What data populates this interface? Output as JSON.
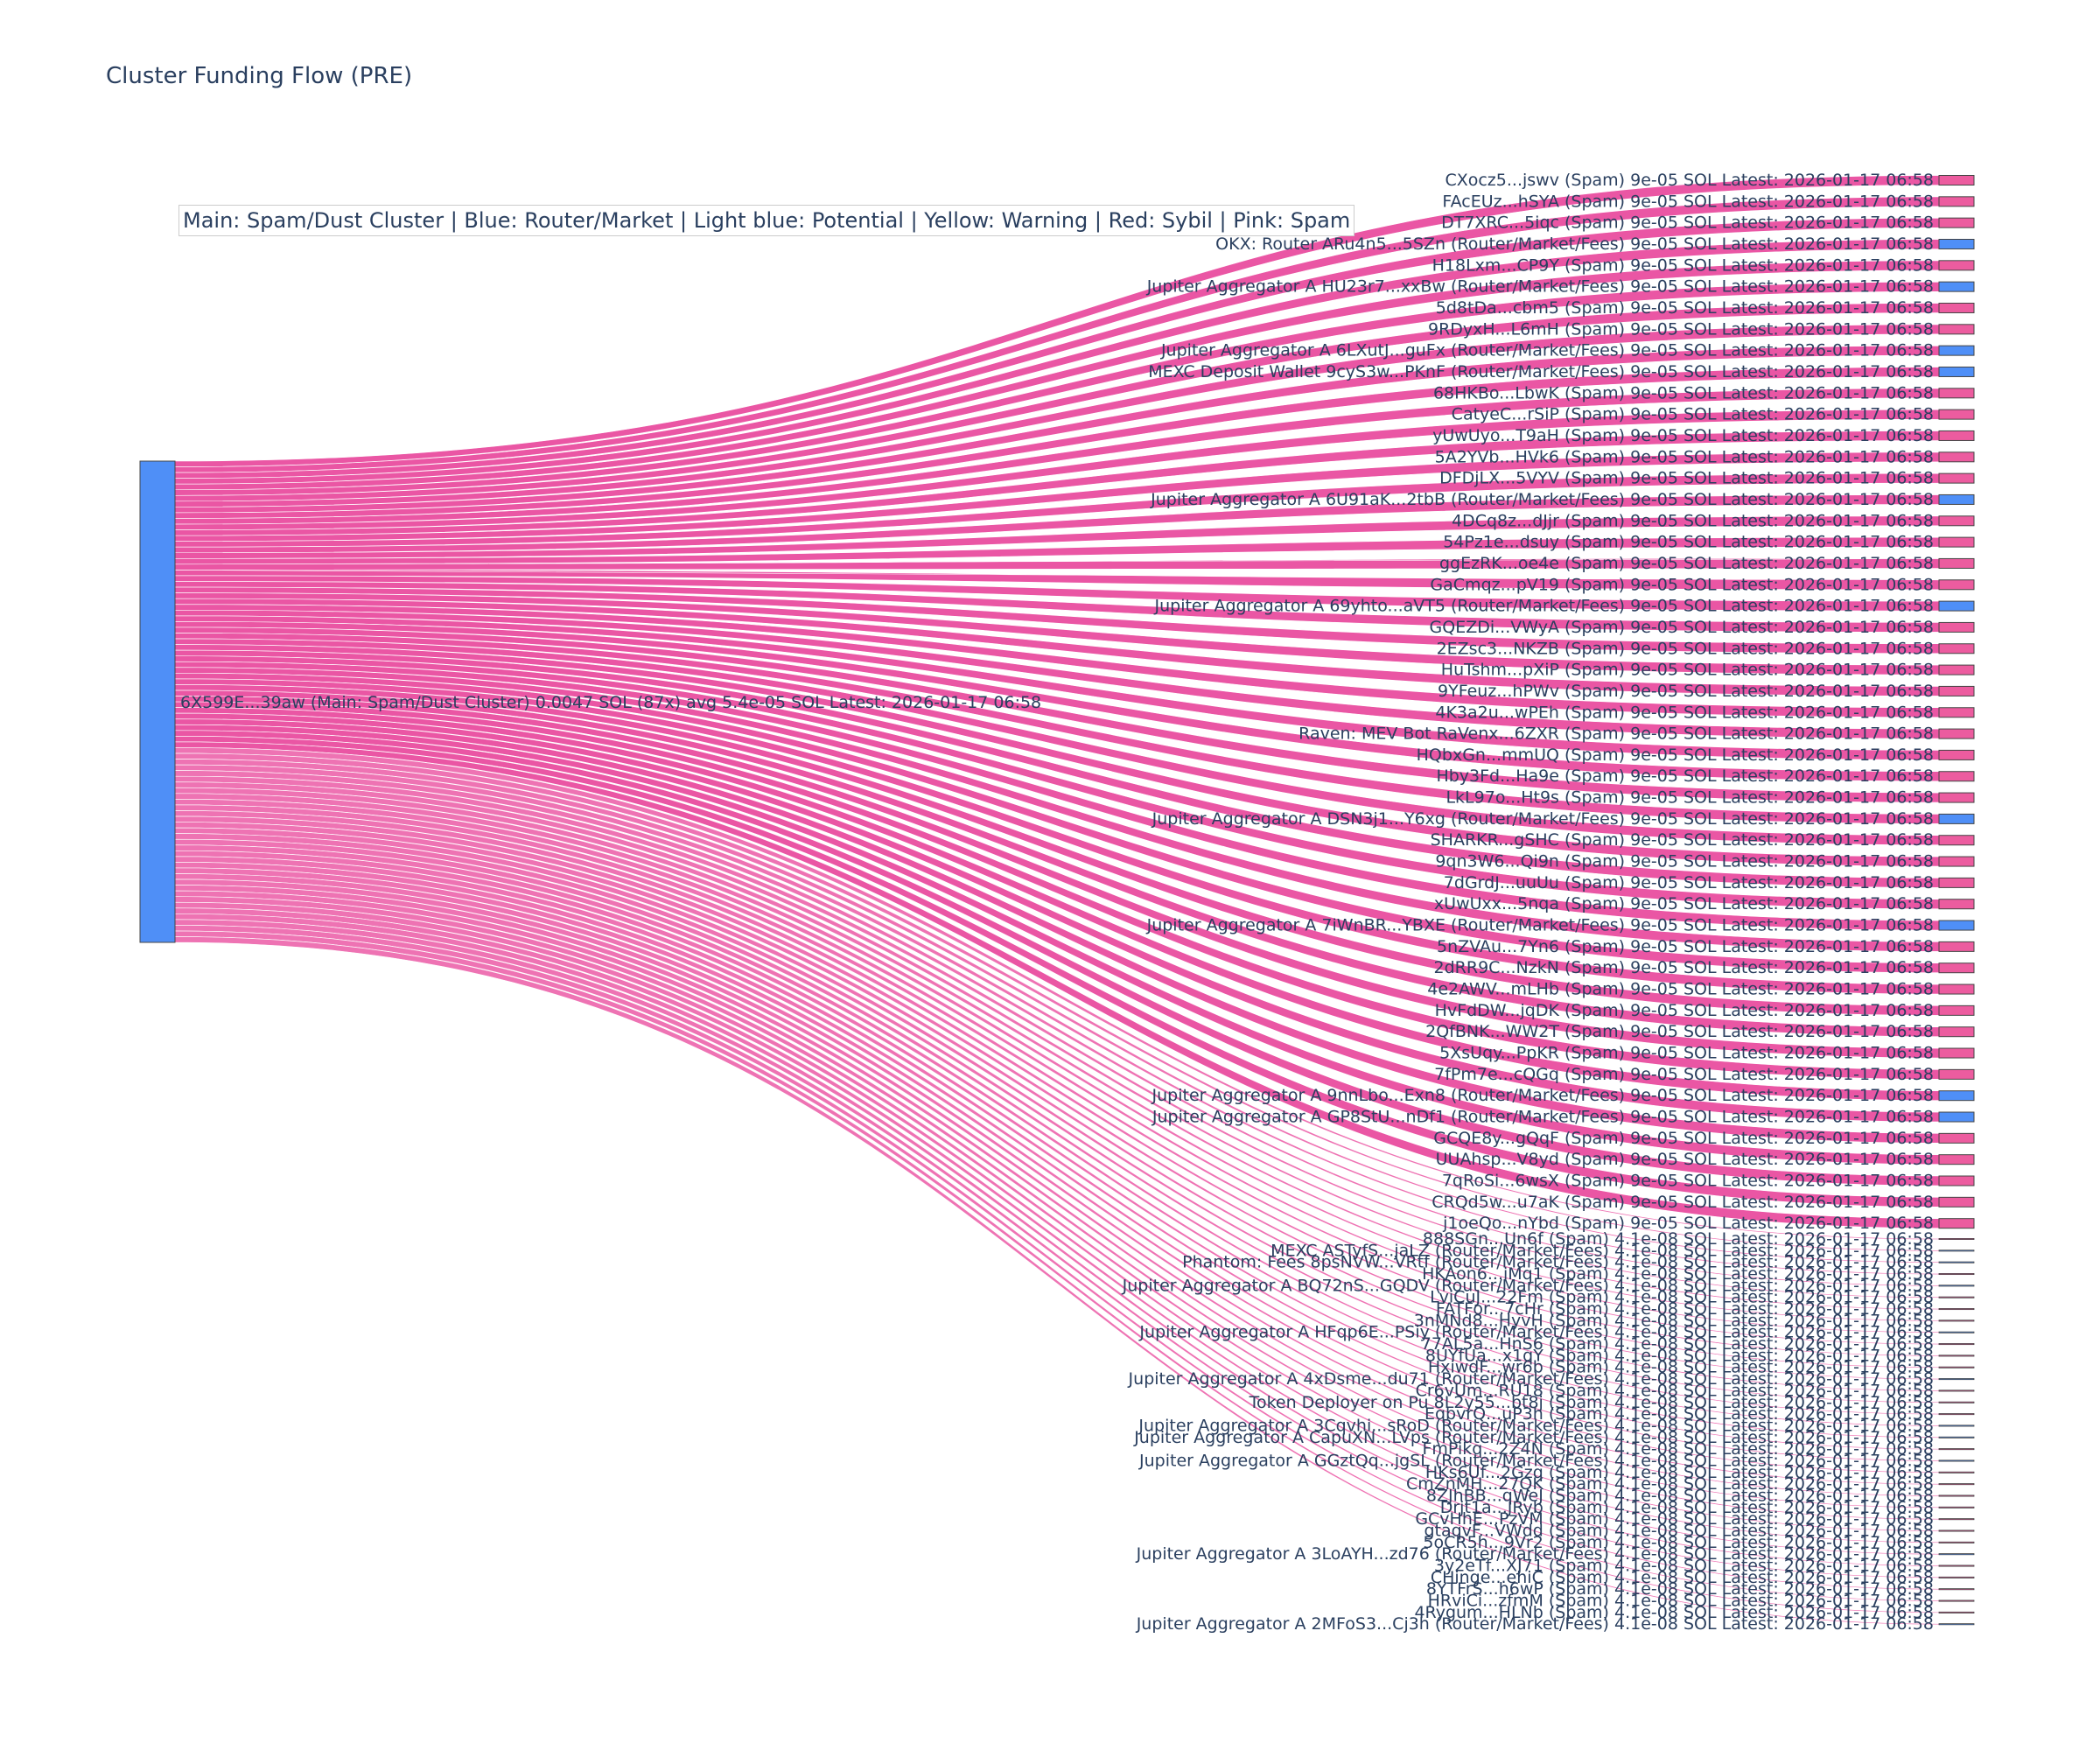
{
  "title": "Cluster Funding Flow (PRE)",
  "legend": "Main: Spam/Dust Cluster  |  Blue: Router/Market | Light blue: Potential | Yellow: Warning | Red: Sybil | Pink: Spam",
  "colors": {
    "router": "#4f8ff7",
    "spam": "#ec5c9f",
    "link": "#e8449a",
    "node_border": "#444444"
  },
  "source": {
    "label": "6X599E...39aw (Main: Spam/Dust Cluster) 0.0047 SOL (87x) avg 5.4e-05 SOL Latest: 2026-01-17 06:58",
    "type": "router"
  },
  "targets": [
    {
      "label": "CXocz5...jswv (Spam) 9e-05 SOL Latest: 2026-01-17 06:58",
      "type": "spam",
      "value": 9e-05
    },
    {
      "label": "FAcEUz...hSYA (Spam) 9e-05 SOL Latest: 2026-01-17 06:58",
      "type": "spam",
      "value": 9e-05
    },
    {
      "label": "DT7XRC...5iqc (Spam) 9e-05 SOL Latest: 2026-01-17 06:58",
      "type": "spam",
      "value": 9e-05
    },
    {
      "label": "OKX: Router ARu4n5...5SZn (Router/Market/Fees) 9e-05 SOL Latest: 2026-01-17 06:58",
      "type": "router",
      "value": 9e-05
    },
    {
      "label": "H18Lxm...CP9Y (Spam) 9e-05 SOL Latest: 2026-01-17 06:58",
      "type": "spam",
      "value": 9e-05
    },
    {
      "label": "Jupiter Aggregator A HU23r7...xxBw (Router/Market/Fees) 9e-05 SOL Latest: 2026-01-17 06:58",
      "type": "router",
      "value": 9e-05
    },
    {
      "label": "5d8tDa...cbm5 (Spam) 9e-05 SOL Latest: 2026-01-17 06:58",
      "type": "spam",
      "value": 9e-05
    },
    {
      "label": "9RDyxH...L6mH (Spam) 9e-05 SOL Latest: 2026-01-17 06:58",
      "type": "spam",
      "value": 9e-05
    },
    {
      "label": "Jupiter Aggregator A 6LXutJ...guFx (Router/Market/Fees) 9e-05 SOL Latest: 2026-01-17 06:58",
      "type": "router",
      "value": 9e-05
    },
    {
      "label": "MEXC Deposit Wallet 9cyS3w...PKnF (Router/Market/Fees) 9e-05 SOL Latest: 2026-01-17 06:58",
      "type": "router",
      "value": 9e-05
    },
    {
      "label": "68HKBo...LbwK (Spam) 9e-05 SOL Latest: 2026-01-17 06:58",
      "type": "spam",
      "value": 9e-05
    },
    {
      "label": "CatyeC...rSiP (Spam) 9e-05 SOL Latest: 2026-01-17 06:58",
      "type": "spam",
      "value": 9e-05
    },
    {
      "label": "yUwUyo...T9aH (Spam) 9e-05 SOL Latest: 2026-01-17 06:58",
      "type": "spam",
      "value": 9e-05
    },
    {
      "label": "5A2YVb...HVk6 (Spam) 9e-05 SOL Latest: 2026-01-17 06:58",
      "type": "spam",
      "value": 9e-05
    },
    {
      "label": "DFDjLX...5VYV (Spam) 9e-05 SOL Latest: 2026-01-17 06:58",
      "type": "spam",
      "value": 9e-05
    },
    {
      "label": "Jupiter Aggregator A 6U91aK...2tbB (Router/Market/Fees) 9e-05 SOL Latest: 2026-01-17 06:58",
      "type": "router",
      "value": 9e-05
    },
    {
      "label": "4DCq8z...dJjr (Spam) 9e-05 SOL Latest: 2026-01-17 06:58",
      "type": "spam",
      "value": 9e-05
    },
    {
      "label": "54Pz1e...dsuy (Spam) 9e-05 SOL Latest: 2026-01-17 06:58",
      "type": "spam",
      "value": 9e-05
    },
    {
      "label": "ggEzRK...oe4e (Spam) 9e-05 SOL Latest: 2026-01-17 06:58",
      "type": "spam",
      "value": 9e-05
    },
    {
      "label": "GaCmqz...pV19 (Spam) 9e-05 SOL Latest: 2026-01-17 06:58",
      "type": "spam",
      "value": 9e-05
    },
    {
      "label": "Jupiter Aggregator A 69yhto...aVT5 (Router/Market/Fees) 9e-05 SOL Latest: 2026-01-17 06:58",
      "type": "router",
      "value": 9e-05
    },
    {
      "label": "GQEZDi...VWyA (Spam) 9e-05 SOL Latest: 2026-01-17 06:58",
      "type": "spam",
      "value": 9e-05
    },
    {
      "label": "2EZsc3...NKZB (Spam) 9e-05 SOL Latest: 2026-01-17 06:58",
      "type": "spam",
      "value": 9e-05
    },
    {
      "label": "HuTshm...pXiP (Spam) 9e-05 SOL Latest: 2026-01-17 06:58",
      "type": "spam",
      "value": 9e-05
    },
    {
      "label": "9YFeuz...hPWv (Spam) 9e-05 SOL Latest: 2026-01-17 06:58",
      "type": "spam",
      "value": 9e-05
    },
    {
      "label": "4K3a2u...wPEh (Spam) 9e-05 SOL Latest: 2026-01-17 06:58",
      "type": "spam",
      "value": 9e-05
    },
    {
      "label": "Raven: MEV Bot RaVenx...6ZXR (Spam) 9e-05 SOL Latest: 2026-01-17 06:58",
      "type": "spam",
      "value": 9e-05
    },
    {
      "label": "HQbxGn...mmUQ (Spam) 9e-05 SOL Latest: 2026-01-17 06:58",
      "type": "spam",
      "value": 9e-05
    },
    {
      "label": "Hby3Fd...Ha9e (Spam) 9e-05 SOL Latest: 2026-01-17 06:58",
      "type": "spam",
      "value": 9e-05
    },
    {
      "label": "LkL97o...Ht9s (Spam) 9e-05 SOL Latest: 2026-01-17 06:58",
      "type": "spam",
      "value": 9e-05
    },
    {
      "label": "Jupiter Aggregator A DSN3j1...Y6xg (Router/Market/Fees) 9e-05 SOL Latest: 2026-01-17 06:58",
      "type": "router",
      "value": 9e-05
    },
    {
      "label": "SHARKR...gSHC (Spam) 9e-05 SOL Latest: 2026-01-17 06:58",
      "type": "spam",
      "value": 9e-05
    },
    {
      "label": "9qn3W6...Qi9n (Spam) 9e-05 SOL Latest: 2026-01-17 06:58",
      "type": "spam",
      "value": 9e-05
    },
    {
      "label": "7dGrdJ...uuUu (Spam) 9e-05 SOL Latest: 2026-01-17 06:58",
      "type": "spam",
      "value": 9e-05
    },
    {
      "label": "xUwUxx...5nqa (Spam) 9e-05 SOL Latest: 2026-01-17 06:58",
      "type": "spam",
      "value": 9e-05
    },
    {
      "label": "Jupiter Aggregator A 7iWnBR...YBXE (Router/Market/Fees) 9e-05 SOL Latest: 2026-01-17 06:58",
      "type": "router",
      "value": 9e-05
    },
    {
      "label": "5nZVAu...7Yn6 (Spam) 9e-05 SOL Latest: 2026-01-17 06:58",
      "type": "spam",
      "value": 9e-05
    },
    {
      "label": "2dRR9C...NzkN (Spam) 9e-05 SOL Latest: 2026-01-17 06:58",
      "type": "spam",
      "value": 9e-05
    },
    {
      "label": "4e2AWV...mLHb (Spam) 9e-05 SOL Latest: 2026-01-17 06:58",
      "type": "spam",
      "value": 9e-05
    },
    {
      "label": "HvFdDW...jqDK (Spam) 9e-05 SOL Latest: 2026-01-17 06:58",
      "type": "spam",
      "value": 9e-05
    },
    {
      "label": "2QfBNK...WW2T (Spam) 9e-05 SOL Latest: 2026-01-17 06:58",
      "type": "spam",
      "value": 9e-05
    },
    {
      "label": "5XsUqy...PpKR (Spam) 9e-05 SOL Latest: 2026-01-17 06:58",
      "type": "spam",
      "value": 9e-05
    },
    {
      "label": "7fPm7e...cQGq (Spam) 9e-05 SOL Latest: 2026-01-17 06:58",
      "type": "spam",
      "value": 9e-05
    },
    {
      "label": "Jupiter Aggregator A 9nnLbo...Exn8 (Router/Market/Fees) 9e-05 SOL Latest: 2026-01-17 06:58",
      "type": "router",
      "value": 9e-05
    },
    {
      "label": "Jupiter Aggregator A GP8StU...nDf1 (Router/Market/Fees) 9e-05 SOL Latest: 2026-01-17 06:58",
      "type": "router",
      "value": 9e-05
    },
    {
      "label": "GCQE8y...gQqF (Spam) 9e-05 SOL Latest: 2026-01-17 06:58",
      "type": "spam",
      "value": 9e-05
    },
    {
      "label": "UUAhsp...V8yd (Spam) 9e-05 SOL Latest: 2026-01-17 06:58",
      "type": "spam",
      "value": 9e-05
    },
    {
      "label": "7qRoSi...6wsX (Spam) 9e-05 SOL Latest: 2026-01-17 06:58",
      "type": "spam",
      "value": 9e-05
    },
    {
      "label": "CRQd5w...u7aK (Spam) 9e-05 SOL Latest: 2026-01-17 06:58",
      "type": "spam",
      "value": 9e-05
    },
    {
      "label": "j1oeQo...nYbd (Spam) 9e-05 SOL Latest: 2026-01-17 06:58",
      "type": "spam",
      "value": 9e-05
    },
    {
      "label": "888SGn...Un6f (Spam) 4.1e-08 SOL Latest: 2026-01-17 06:58",
      "type": "spam",
      "value": 4.1e-08
    },
    {
      "label": "MEXC ASTyfS...jaLZ (Router/Market/Fees) 4.1e-08 SOL Latest: 2026-01-17 06:58",
      "type": "router",
      "value": 4.1e-08
    },
    {
      "label": "Phantom: Fees 8psNVW...VRtf (Router/Market/Fees) 4.1e-08 SOL Latest: 2026-01-17 06:58",
      "type": "router",
      "value": 4.1e-08
    },
    {
      "label": "HKAon6...iMq1 (Spam) 4.1e-08 SOL Latest: 2026-01-17 06:58",
      "type": "spam",
      "value": 4.1e-08
    },
    {
      "label": "Jupiter Aggregator A BQ72nS...GQDV (Router/Market/Fees) 4.1e-08 SOL Latest: 2026-01-17 06:58",
      "type": "router",
      "value": 4.1e-08
    },
    {
      "label": "LviCuJ...22Fm (Spam) 4.1e-08 SOL Latest: 2026-01-17 06:58",
      "type": "spam",
      "value": 4.1e-08
    },
    {
      "label": "FATFor...7cHr (Spam) 4.1e-08 SOL Latest: 2026-01-17 06:58",
      "type": "spam",
      "value": 4.1e-08
    },
    {
      "label": "3nMNd8...HyvH (Spam) 4.1e-08 SOL Latest: 2026-01-17 06:58",
      "type": "spam",
      "value": 4.1e-08
    },
    {
      "label": "Jupiter Aggregator A HFqp6E...PSiy (Router/Market/Fees) 4.1e-08 SOL Latest: 2026-01-17 06:58",
      "type": "router",
      "value": 4.1e-08
    },
    {
      "label": "77AL5a...HnS6 (Spam) 4.1e-08 SOL Latest: 2026-01-17 06:58",
      "type": "spam",
      "value": 4.1e-08
    },
    {
      "label": "8UYfUa...x1qY (Spam) 4.1e-08 SOL Latest: 2026-01-17 06:58",
      "type": "spam",
      "value": 4.1e-08
    },
    {
      "label": "HxiwdF...wr6b (Spam) 4.1e-08 SOL Latest: 2026-01-17 06:58",
      "type": "spam",
      "value": 4.1e-08
    },
    {
      "label": "Jupiter Aggregator A 4xDsme...du71 (Router/Market/Fees) 4.1e-08 SOL Latest: 2026-01-17 06:58",
      "type": "router",
      "value": 4.1e-08
    },
    {
      "label": "Cr6vUm...RU18 (Spam) 4.1e-08 SOL Latest: 2026-01-17 06:58",
      "type": "spam",
      "value": 4.1e-08
    },
    {
      "label": "Token Deployer on Pu 8L2y55...bt8j (Spam) 4.1e-08 SOL Latest: 2026-01-17 06:58",
      "type": "spam",
      "value": 4.1e-08
    },
    {
      "label": "EqbvrQ...uP3h (Spam) 4.1e-08 SOL Latest: 2026-01-17 06:58",
      "type": "spam",
      "value": 4.1e-08
    },
    {
      "label": "Jupiter Aggregator A 3Cqvhi...sRoD (Router/Market/Fees) 4.1e-08 SOL Latest: 2026-01-17 06:58",
      "type": "router",
      "value": 4.1e-08
    },
    {
      "label": "Jupiter Aggregator A CapuXN...LVps (Router/Market/Fees) 4.1e-08 SOL Latest: 2026-01-17 06:58",
      "type": "router",
      "value": 4.1e-08
    },
    {
      "label": "FmPikq...2Z4N (Spam) 4.1e-08 SOL Latest: 2026-01-17 06:58",
      "type": "spam",
      "value": 4.1e-08
    },
    {
      "label": "Jupiter Aggregator A GGztQq...jgSL (Router/Market/Fees) 4.1e-08 SOL Latest: 2026-01-17 06:58",
      "type": "router",
      "value": 4.1e-08
    },
    {
      "label": "HKs6Uf...2Gzq (Spam) 4.1e-08 SOL Latest: 2026-01-17 06:58",
      "type": "spam",
      "value": 4.1e-08
    },
    {
      "label": "CmZnMH...27QK (Spam) 4.1e-08 SOL Latest: 2026-01-17 06:58",
      "type": "spam",
      "value": 4.1e-08
    },
    {
      "label": "8ZJhBB...qWeJ (Spam) 4.1e-08 SOL Latest: 2026-01-17 06:58",
      "type": "spam",
      "value": 4.1e-08
    },
    {
      "label": "Drjt1a...JRyb (Spam) 4.1e-08 SOL Latest: 2026-01-17 06:58",
      "type": "spam",
      "value": 4.1e-08
    },
    {
      "label": "GCvHhE...PzVM (Spam) 4.1e-08 SOL Latest: 2026-01-17 06:58",
      "type": "spam",
      "value": 4.1e-08
    },
    {
      "label": "gtaqvF...VWdd (Spam) 4.1e-08 SOL Latest: 2026-01-17 06:58",
      "type": "spam",
      "value": 4.1e-08
    },
    {
      "label": "5oCR5h...9Vr2 (Spam) 4.1e-08 SOL Latest: 2026-01-17 06:58",
      "type": "spam",
      "value": 4.1e-08
    },
    {
      "label": "Jupiter Aggregator A 3LoAYH...zd76 (Router/Market/Fees) 4.1e-08 SOL Latest: 2026-01-17 06:58",
      "type": "router",
      "value": 4.1e-08
    },
    {
      "label": "3y2eTf...XJ71 (Spam) 4.1e-08 SOL Latest: 2026-01-17 06:58",
      "type": "spam",
      "value": 4.1e-08
    },
    {
      "label": "CHinge...ehiC (Spam) 4.1e-08 SOL Latest: 2026-01-17 06:58",
      "type": "spam",
      "value": 4.1e-08
    },
    {
      "label": "8YTFrS...h6wP (Spam) 4.1e-08 SOL Latest: 2026-01-17 06:58",
      "type": "spam",
      "value": 4.1e-08
    },
    {
      "label": "HRviCi...zfmM (Spam) 4.1e-08 SOL Latest: 2026-01-17 06:58",
      "type": "spam",
      "value": 4.1e-08
    },
    {
      "label": "4Rygum...HLNb (Spam) 4.1e-08 SOL Latest: 2026-01-17 06:58",
      "type": "spam",
      "value": 4.1e-08
    },
    {
      "label": "Jupiter Aggregator A 2MFoS3...Cj3h (Router/Market/Fees) 4.1e-08 SOL Latest: 2026-01-17 06:58",
      "type": "router",
      "value": 4.1e-08
    }
  ]
}
